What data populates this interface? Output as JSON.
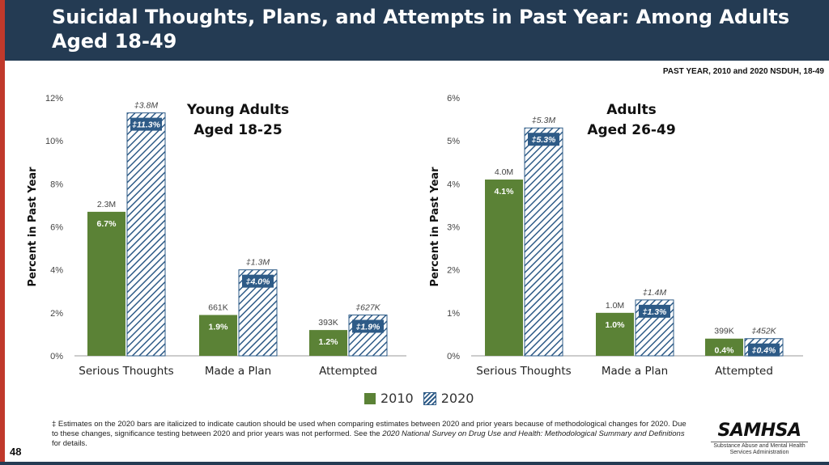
{
  "title": "Suicidal Thoughts, Plans, and Attempts in Past Year: Among Adults Aged 18-49",
  "subhead": "PAST YEAR, 2010 and 2020 NSDUH, 18-49",
  "colors": {
    "y2010": "#5b8236",
    "y2020": "#2e5b87",
    "header": "#243b53",
    "accent": "#c0392b"
  },
  "legend": {
    "y2010": "2010",
    "y2020": "2020"
  },
  "footnote": {
    "part1": "‡ Estimates on the 2020 bars are italicized to indicate caution should be used when comparing estimates between 2020 and prior years because of methodological changes for 2020. Due to these changes, significance testing between 2020 and prior years was not performed. See the ",
    "italic": "2020 National Survey on Drug Use and Health: Methodological Summary and Definitions",
    "part2": " for details."
  },
  "page_number": "48",
  "logo": {
    "name": "SAMHSA",
    "tagline": "Substance Abuse and Mental Health Services Administration"
  },
  "chart_data": [
    {
      "type": "bar",
      "title": "Young Adults Aged 18-25",
      "title_lines": [
        "Young Adults",
        "Aged 18-25"
      ],
      "ylabel": "Percent in Past Year",
      "ylim": [
        0,
        12
      ],
      "yticks": [
        0,
        2,
        4,
        6,
        8,
        10,
        12
      ],
      "ytick_labels": [
        "0%",
        "2%",
        "4%",
        "6%",
        "8%",
        "10%",
        "12%"
      ],
      "categories": [
        "Serious Thoughts",
        "Made a Plan",
        "Attempted"
      ],
      "series": [
        {
          "name": "2010",
          "values": [
            6.7,
            1.9,
            1.2
          ],
          "value_labels": [
            "6.7%",
            "1.9%",
            "1.2%"
          ],
          "count_labels": [
            "2.3M",
            "661K",
            "393K"
          ]
        },
        {
          "name": "2020",
          "values": [
            11.3,
            4.0,
            1.9
          ],
          "value_labels": [
            "‡11.3%",
            "‡4.0%",
            "‡1.9%"
          ],
          "count_labels": [
            "‡3.8M",
            "‡1.3M",
            "‡627K"
          ]
        }
      ]
    },
    {
      "type": "bar",
      "title": "Adults Aged 26-49",
      "title_lines": [
        "Adults",
        "Aged 26-49"
      ],
      "ylabel": "Percent in Past Year",
      "ylim": [
        0,
        6
      ],
      "yticks": [
        0,
        1,
        2,
        3,
        4,
        5,
        6
      ],
      "ytick_labels": [
        "0%",
        "1%",
        "2%",
        "3%",
        "4%",
        "5%",
        "6%"
      ],
      "categories": [
        "Serious Thoughts",
        "Made a Plan",
        "Attempted"
      ],
      "series": [
        {
          "name": "2010",
          "values": [
            4.1,
            1.0,
            0.4
          ],
          "value_labels": [
            "4.1%",
            "1.0%",
            "0.4%"
          ],
          "count_labels": [
            "4.0M",
            "1.0M",
            "399K"
          ]
        },
        {
          "name": "2020",
          "values": [
            5.3,
            1.3,
            0.4
          ],
          "value_labels": [
            "‡5.3%",
            "‡1.3%",
            "‡0.4%"
          ],
          "count_labels": [
            "‡5.3M",
            "‡1.4M",
            "‡452K"
          ]
        }
      ]
    }
  ]
}
